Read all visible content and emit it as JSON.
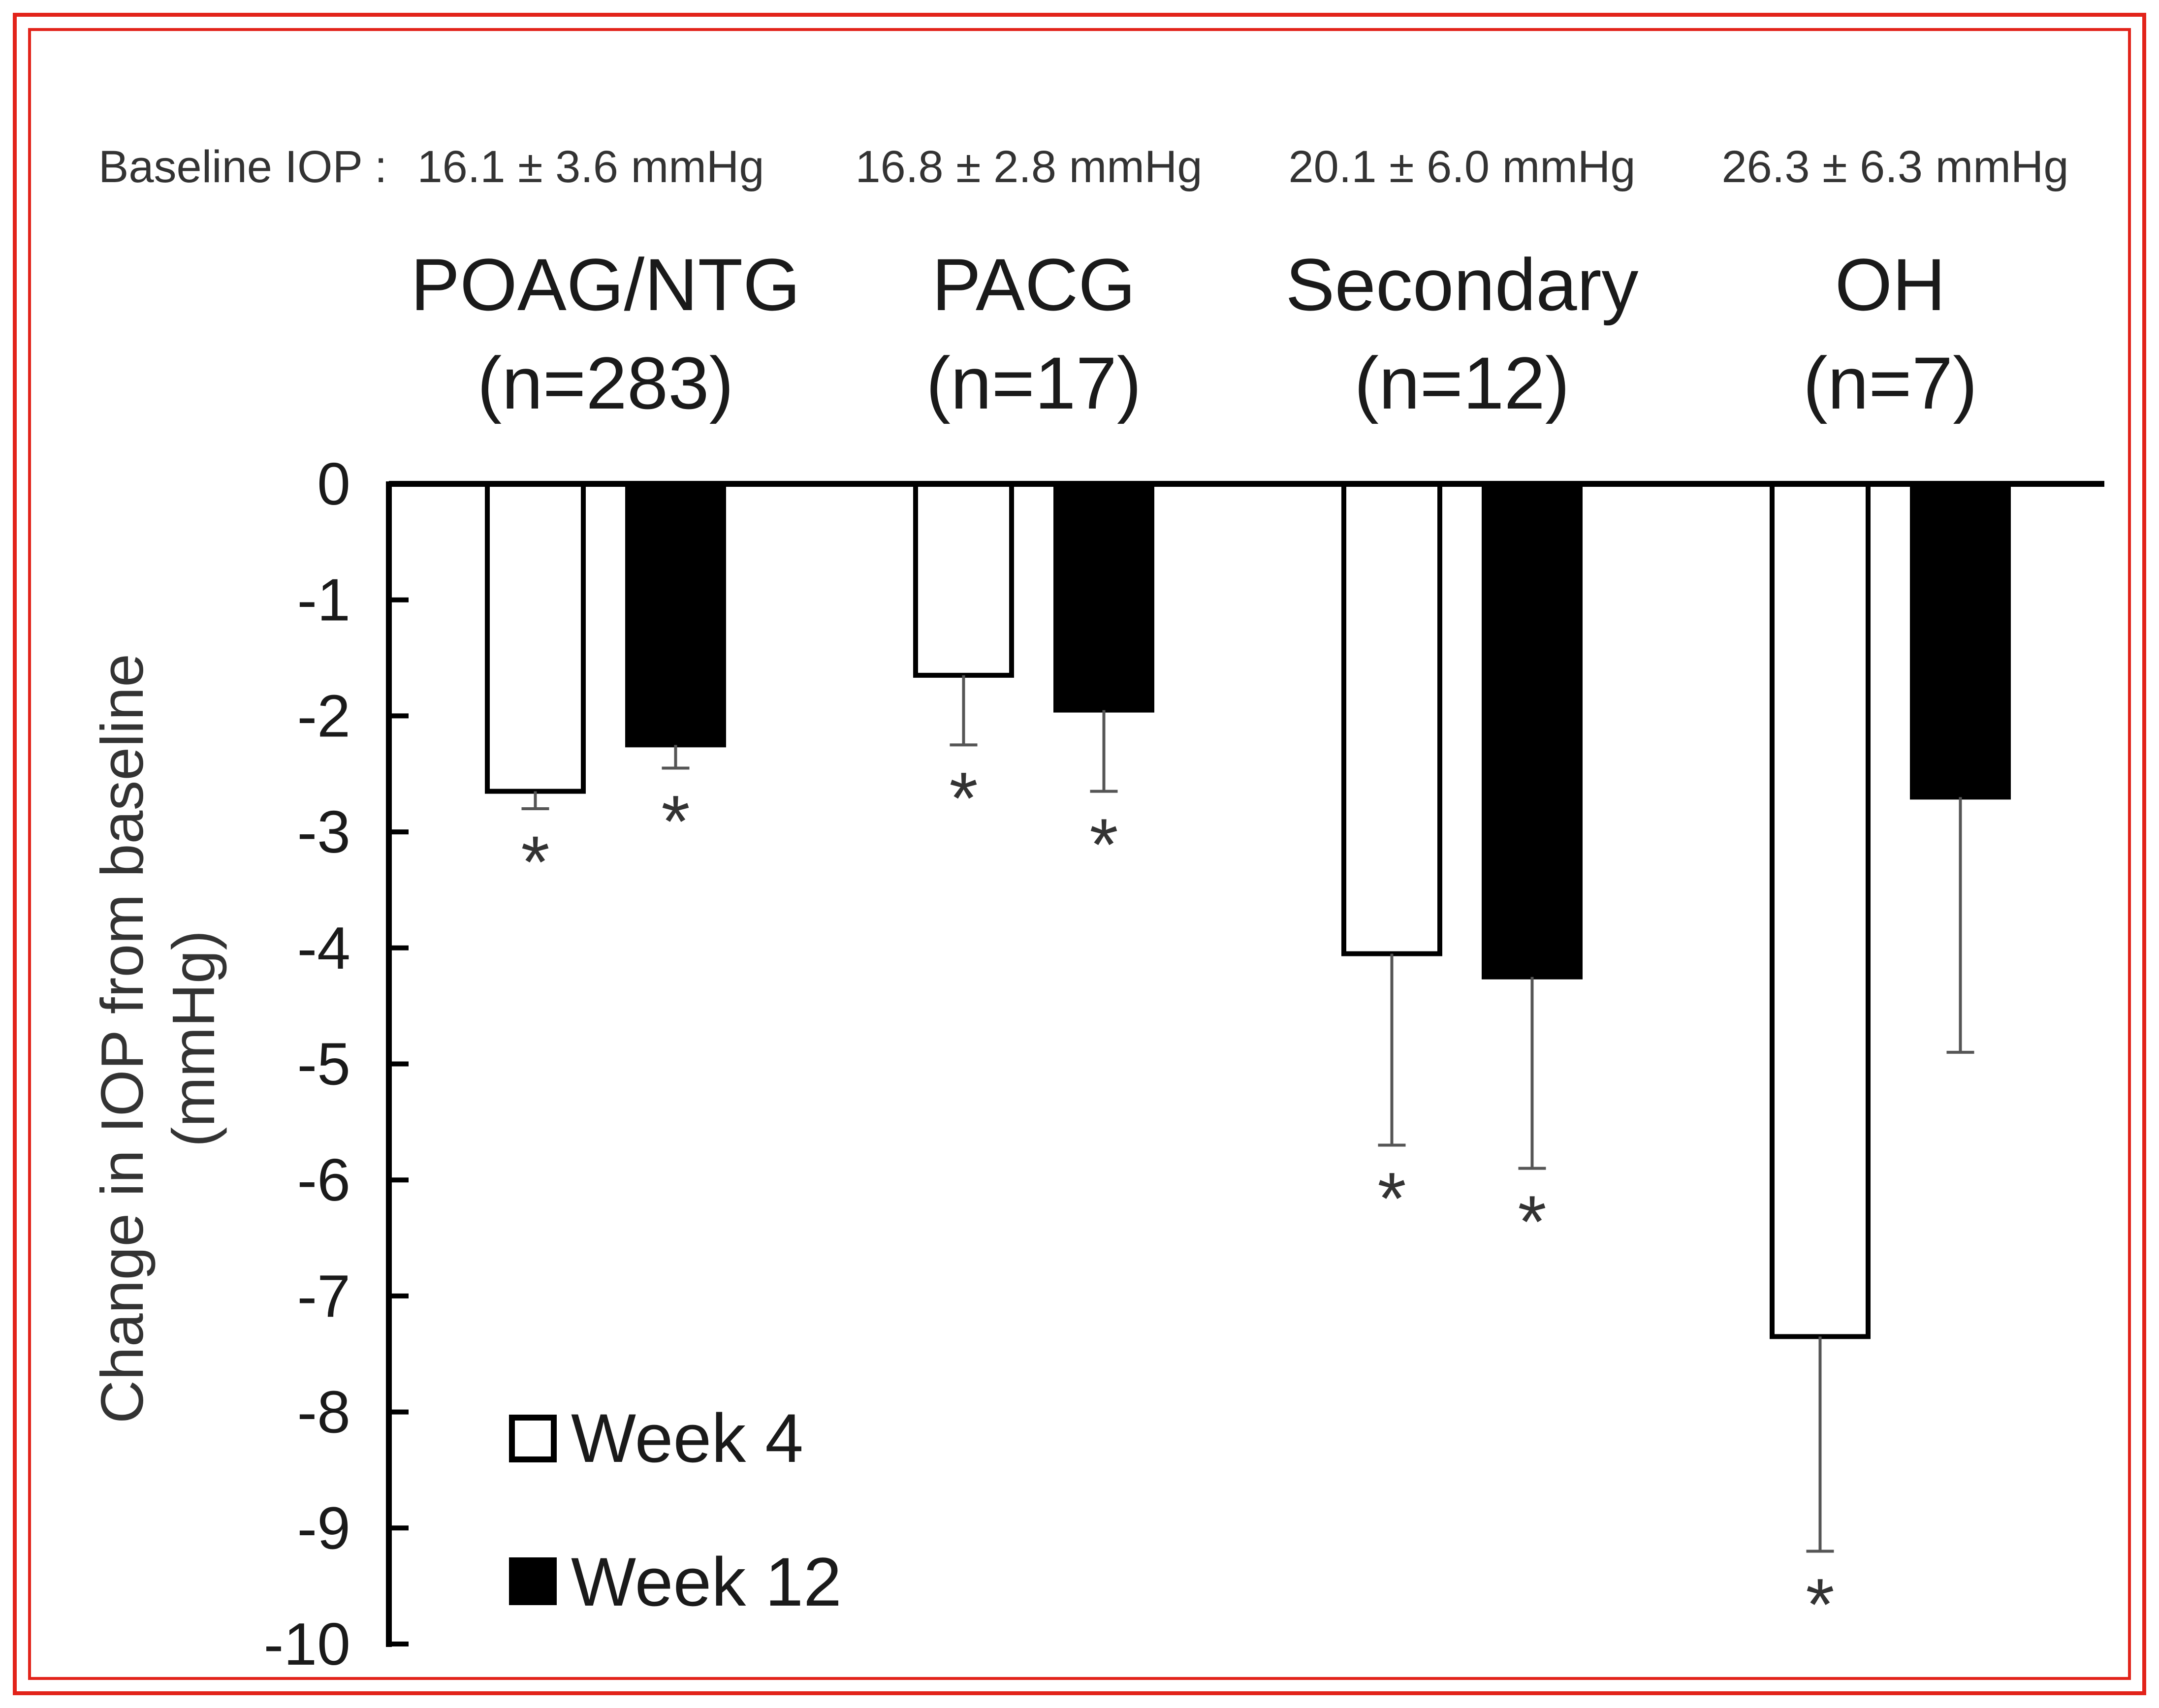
{
  "chart_data": {
    "type": "bar",
    "baseline_prefix": "Baseline IOP :",
    "categories": [
      {
        "name": "POAG/NTG",
        "n_label": "(n=283)",
        "baseline": "16.1 ± 3.6 mmHg"
      },
      {
        "name": "PACG",
        "n_label": "(n=17)",
        "baseline": "16.8 ± 2.8 mmHg"
      },
      {
        "name": "Secondary",
        "n_label": "(n=12)",
        "baseline": "20.1 ± 6.0 mmHg"
      },
      {
        "name": "OH",
        "n_label": "(n=7)",
        "baseline": "26.3 ± 6.3 mmHg"
      }
    ],
    "series": [
      {
        "name": "Week 4",
        "fill": "#ffffff",
        "values": [
          -2.65,
          -1.65,
          -4.05,
          -7.35
        ],
        "errors": [
          0.15,
          0.6,
          1.65,
          1.85
        ],
        "significant": [
          true,
          true,
          true,
          true
        ]
      },
      {
        "name": "Week 12",
        "fill": "#000000",
        "values": [
          -2.25,
          -1.95,
          -4.25,
          -2.7
        ],
        "errors": [
          0.2,
          0.7,
          1.65,
          2.2
        ],
        "significant": [
          true,
          true,
          true,
          false
        ]
      }
    ],
    "significance_marker": "*",
    "ylabel_line1": "Change in IOP from baseline",
    "ylabel_line2": "(mmHg)",
    "ylim": [
      -10,
      0
    ],
    "yticks": [
      "0",
      "-1",
      "-2",
      "-3",
      "-4",
      "-5",
      "-6",
      "-7",
      "-8",
      "-9",
      "-10"
    ],
    "legend_position": "bottom-left",
    "grid": false
  }
}
